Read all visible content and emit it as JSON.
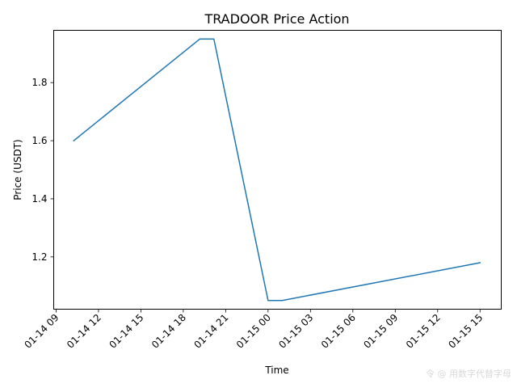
{
  "chart_data": {
    "type": "line",
    "title": "TRADOOR Price Action",
    "xlabel": "Time",
    "ylabel": "Price (USDT)",
    "x_ticks": [
      "01-14 09",
      "01-14 12",
      "01-14 15",
      "01-14 18",
      "01-14 21",
      "01-15 00",
      "01-15 03",
      "01-15 06",
      "01-15 09",
      "01-15 12",
      "01-15 15"
    ],
    "y_ticks": [
      "1.2",
      "1.4",
      "1.6",
      "1.8"
    ],
    "ylim": [
      1.02,
      1.98
    ],
    "xlim": [
      "01-14 08:50",
      "01-15 16:30"
    ],
    "grid": false,
    "series": [
      {
        "color": "#1f77b4",
        "x": [
          "01-14 10:15",
          "01-14 19:10",
          "01-14 20:10",
          "01-15 00:00",
          "01-15 01:00",
          "01-15 15:00"
        ],
        "values": [
          1.6,
          1.95,
          1.95,
          1.05,
          1.05,
          1.18
        ]
      }
    ]
  },
  "watermark": "令 @ 用数字代替字母"
}
